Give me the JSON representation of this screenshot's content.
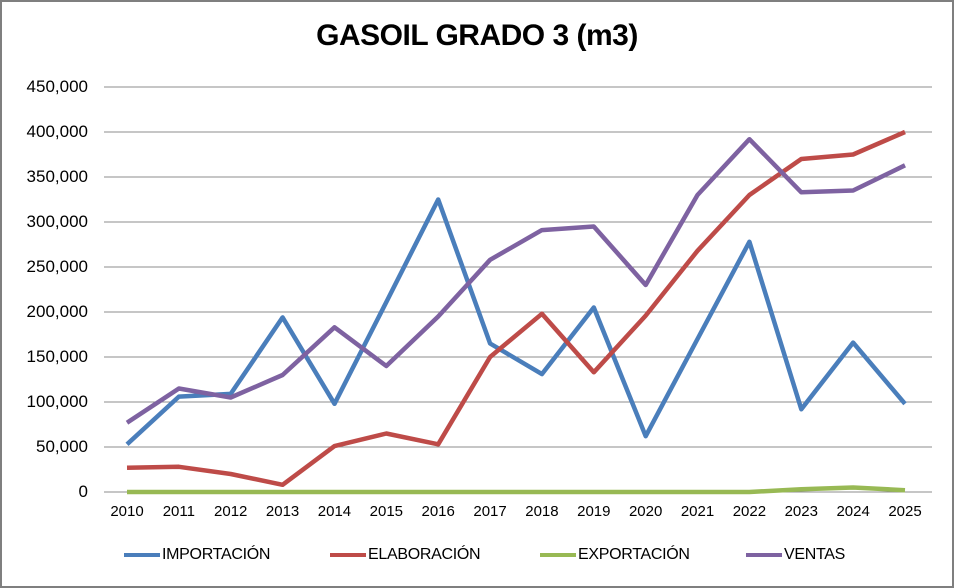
{
  "title": "GASOIL GRADO 3 (m3)",
  "chart_data": {
    "type": "line",
    "title": "GASOIL GRADO 3 (m3)",
    "categories": [
      "2010",
      "2011",
      "2012",
      "2013",
      "2014",
      "2015",
      "2016",
      "2017",
      "2018",
      "2019",
      "2020",
      "2021",
      "2022",
      "2023",
      "2024",
      "2025"
    ],
    "series": [
      {
        "name": "IMPORTACIÓN",
        "color": "#4A7EBB",
        "values": [
          53000,
          106000,
          109000,
          194000,
          98000,
          211000,
          325000,
          165000,
          131000,
          205000,
          62000,
          170000,
          278000,
          92000,
          166000,
          98000
        ]
      },
      {
        "name": "ELABORACIÓN",
        "color": "#BE4B48",
        "values": [
          27000,
          28000,
          20000,
          8000,
          51000,
          65000,
          53000,
          150000,
          198000,
          133000,
          196000,
          268000,
          330000,
          370000,
          375000,
          400000
        ]
      },
      {
        "name": "EXPORTACIÓN",
        "color": "#98B954",
        "values": [
          0,
          0,
          0,
          0,
          0,
          0,
          0,
          0,
          0,
          0,
          0,
          0,
          0,
          3000,
          5000,
          2000
        ]
      },
      {
        "name": "VENTAS",
        "color": "#7E62A1",
        "values": [
          77000,
          115000,
          105000,
          130000,
          183000,
          140000,
          195000,
          258000,
          291000,
          295000,
          230000,
          330000,
          392000,
          333000,
          335000,
          363000
        ]
      }
    ],
    "yticks": [
      0,
      50000,
      100000,
      150000,
      200000,
      250000,
      300000,
      350000,
      400000,
      450000
    ],
    "ytick_labels": [
      "0",
      "50,000",
      "100,000",
      "150,000",
      "200,000",
      "250,000",
      "300,000",
      "350,000",
      "400,000",
      "450,000"
    ],
    "ylim": [
      0,
      450000
    ],
    "xlabel": "",
    "ylabel": "",
    "grid": true,
    "legend_position": "bottom",
    "gridline_color": "#8C8C8C",
    "border_color": "#7F7F7F"
  }
}
